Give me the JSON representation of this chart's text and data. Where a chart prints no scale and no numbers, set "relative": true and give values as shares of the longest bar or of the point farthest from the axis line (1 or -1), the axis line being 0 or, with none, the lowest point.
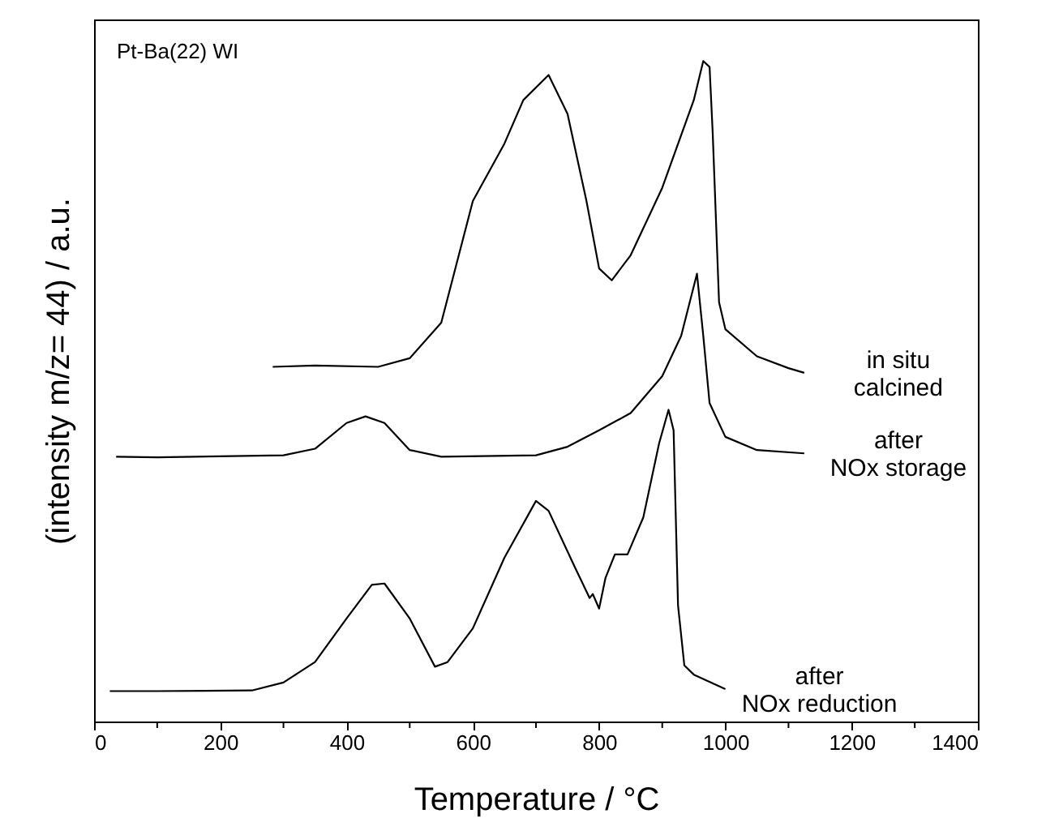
{
  "chart_data": {
    "type": "line",
    "relative": true,
    "xlabel": "Temperature / °C",
    "ylabel": "(intensity m/z= 44) / a.u.",
    "annotations": [
      "Pt-Ba(22) WI"
    ],
    "xlim": [
      0,
      1400
    ],
    "xticks": [
      0,
      {
        "value": 100,
        "label": null
      },
      200,
      {
        "value": 300,
        "label": null
      },
      400,
      {
        "value": 500,
        "label": null
      },
      600,
      {
        "value": 700,
        "label": null
      },
      800,
      {
        "value": 900,
        "label": null
      },
      1000,
      {
        "value": 1100,
        "label": null
      },
      1200,
      {
        "value": 1300,
        "label": null
      },
      1400
    ],
    "legend": false,
    "grid": false,
    "marker": "none",
    "line_style": "solid",
    "series": [
      {
        "name": "in situ\ncalcined",
        "color": "#000000",
        "x": [
          283,
          350,
          450,
          500,
          550,
          600,
          650,
          680,
          720,
          750,
          780,
          800,
          820,
          850,
          900,
          950,
          965,
          975,
          980,
          990,
          1000,
          1050,
          1100,
          1125
        ],
        "values": [
          0.537,
          0.539,
          0.537,
          0.55,
          0.604,
          0.788,
          0.875,
          0.941,
          0.979,
          0.92,
          0.788,
          0.686,
          0.668,
          0.706,
          0.808,
          0.941,
          1.0,
          0.991,
          0.89,
          0.635,
          0.594,
          0.553,
          0.535,
          0.528
        ]
      },
      {
        "name": "after\nNOx storage",
        "color": "#000000",
        "x": [
          35,
          100,
          300,
          350,
          400,
          430,
          460,
          500,
          550,
          700,
          750,
          800,
          850,
          900,
          930,
          955,
          965,
          975,
          1000,
          1050,
          1125
        ],
        "values": [
          0.401,
          0.4,
          0.403,
          0.413,
          0.452,
          0.462,
          0.452,
          0.411,
          0.401,
          0.403,
          0.416,
          0.441,
          0.467,
          0.523,
          0.584,
          0.678,
          0.584,
          0.482,
          0.431,
          0.411,
          0.406
        ]
      },
      {
        "name": "after\nNOx reduction",
        "color": "#000000",
        "x": [
          25,
          100,
          250,
          300,
          350,
          400,
          440,
          460,
          500,
          540,
          560,
          600,
          650,
          700,
          720,
          760,
          785,
          790,
          800,
          810,
          825,
          845,
          870,
          895,
          910,
          918,
          925,
          935,
          950,
          1000
        ],
        "values": [
          0.046,
          0.046,
          0.047,
          0.059,
          0.09,
          0.156,
          0.207,
          0.209,
          0.156,
          0.083,
          0.09,
          0.141,
          0.248,
          0.334,
          0.319,
          0.237,
          0.187,
          0.193,
          0.171,
          0.217,
          0.253,
          0.253,
          0.309,
          0.421,
          0.472,
          0.441,
          0.176,
          0.085,
          0.071,
          0.049
        ]
      }
    ]
  }
}
